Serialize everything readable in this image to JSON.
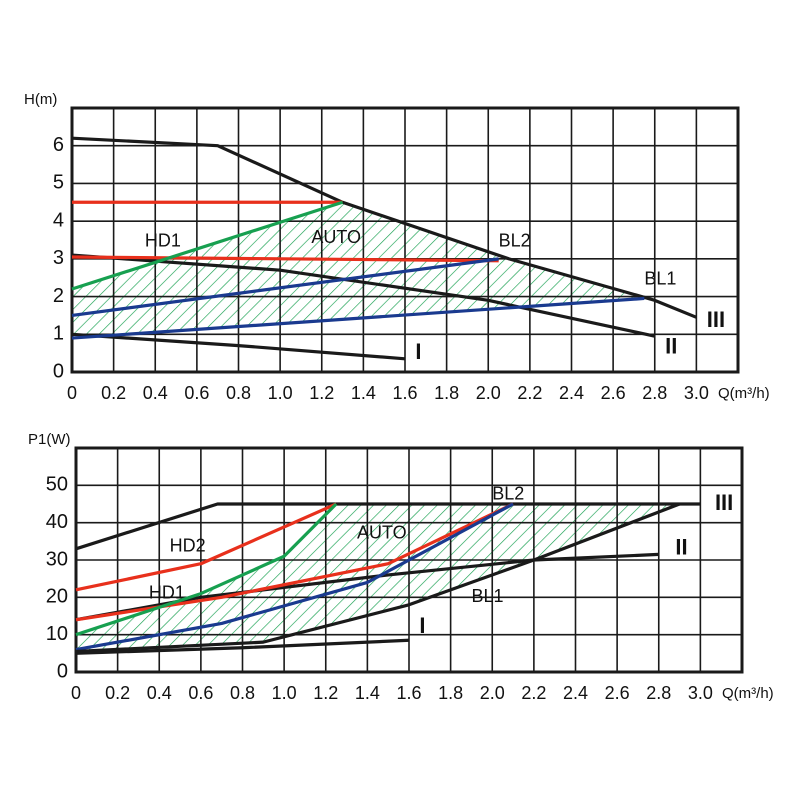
{
  "chart_data": [
    {
      "type": "line",
      "ylabel": "H(m)",
      "xlabel": "Q(m³/h)",
      "xlim": [
        0,
        3.2
      ],
      "ylim": [
        0,
        7
      ],
      "xticks": [
        0,
        0.2,
        0.4,
        0.6,
        0.8,
        {
          "value": 1,
          "label": "1.0"
        },
        1.2,
        1.4,
        1.6,
        1.8,
        {
          "value": 2,
          "label": "2.0"
        },
        2.2,
        2.4,
        2.6,
        2.8,
        {
          "value": 3,
          "label": "3.0"
        }
      ],
      "yticks": [
        0,
        1,
        2,
        3,
        4,
        5,
        6
      ],
      "grid": true,
      "hatch": {
        "color": "#17a050",
        "x": [
          0,
          1.3,
          2.1,
          2.75,
          0
        ],
        "values": [
          2.2,
          4.5,
          3.0,
          1.95,
          0.9
        ]
      },
      "series": [
        {
          "name": "III",
          "color": "#1a1a1a",
          "x": [
            0,
            0.7,
            1.3,
            2.1,
            2.8,
            3.0
          ],
          "values": [
            6.2,
            6.0,
            4.5,
            3.0,
            1.9,
            1.45
          ]
        },
        {
          "name": "II",
          "color": "#1a1a1a",
          "x": [
            0,
            1.0,
            2.0,
            2.8
          ],
          "values": [
            3.1,
            2.7,
            1.9,
            0.95
          ]
        },
        {
          "name": "I",
          "color": "#1a1a1a",
          "x": [
            0,
            0.8,
            1.6
          ],
          "values": [
            1.0,
            0.7,
            0.35
          ]
        },
        {
          "color": "#e8301c",
          "x": [
            0,
            1.3
          ],
          "values": [
            4.5,
            4.5
          ]
        },
        {
          "name": "HD1",
          "color": "#e8301c",
          "x": [
            0,
            2.05
          ],
          "values": [
            3.05,
            2.95
          ]
        },
        {
          "name": "AUTO",
          "color": "#17a050",
          "x": [
            0,
            1.3
          ],
          "values": [
            2.2,
            4.5
          ]
        },
        {
          "name": "BL2",
          "color": "#1a3a8f",
          "x": [
            0,
            2.05
          ],
          "values": [
            1.5,
            3.0
          ]
        },
        {
          "name": "BL1",
          "color": "#1a3a8f",
          "x": [
            0,
            2.75
          ],
          "values": [
            0.9,
            1.95
          ]
        }
      ]
    },
    {
      "type": "line",
      "ylabel": "P1(W)",
      "xlabel": "Q(m³/h)",
      "xlim": [
        0,
        3.2
      ],
      "ylim": [
        0,
        60
      ],
      "xticks": [
        0,
        0.2,
        0.4,
        0.6,
        0.8,
        {
          "value": 1,
          "label": "1.0"
        },
        1.2,
        1.4,
        1.6,
        1.8,
        {
          "value": 2,
          "label": "2.0"
        },
        2.2,
        2.4,
        2.6,
        2.8,
        {
          "value": 3,
          "label": "3.0"
        }
      ],
      "yticks": [
        0,
        10,
        20,
        30,
        40,
        50
      ],
      "grid": true,
      "hatch": {
        "color": "#17a050",
        "x": [
          0,
          0.6,
          1.0,
          1.25,
          2.9,
          2.2,
          1.6,
          0.9,
          0
        ],
        "values": [
          10,
          21,
          31,
          45,
          45,
          30,
          18,
          8,
          5.5
        ]
      },
      "series": [
        {
          "name": "III",
          "color": "#1a1a1a",
          "x": [
            0,
            0.68,
            3.0
          ],
          "values": [
            33,
            45,
            45
          ]
        },
        {
          "name": "II",
          "color": "#1a1a1a",
          "x": [
            0,
            0.6,
            1.5,
            2.2,
            2.8
          ],
          "values": [
            14,
            20,
            26,
            30,
            31.5
          ]
        },
        {
          "name": "I",
          "color": "#1a1a1a",
          "x": [
            0,
            0.8,
            1.6
          ],
          "values": [
            5,
            6.5,
            8.5
          ]
        },
        {
          "name": "HD2",
          "color": "#e8301c",
          "x": [
            0,
            0.6,
            1.25
          ],
          "values": [
            22,
            29,
            45
          ]
        },
        {
          "name": "HD1",
          "color": "#e8301c",
          "x": [
            0,
            0.7,
            1.5,
            2.1
          ],
          "values": [
            14,
            20,
            29,
            45
          ]
        },
        {
          "name": "AUTO",
          "color": "#17a050",
          "x": [
            0,
            0.6,
            1.0,
            1.25
          ],
          "values": [
            10,
            21,
            31,
            45
          ]
        },
        {
          "name": "BL2",
          "color": "#1a3a8f",
          "x": [
            0,
            0.7,
            1.4,
            2.1
          ],
          "values": [
            6,
            13,
            24,
            45
          ]
        },
        {
          "name": "BL1",
          "color": "#1a1a1a",
          "x": [
            0,
            0.9,
            1.6,
            2.2,
            2.9
          ],
          "values": [
            5.5,
            8,
            18,
            30,
            45
          ]
        }
      ]
    }
  ]
}
